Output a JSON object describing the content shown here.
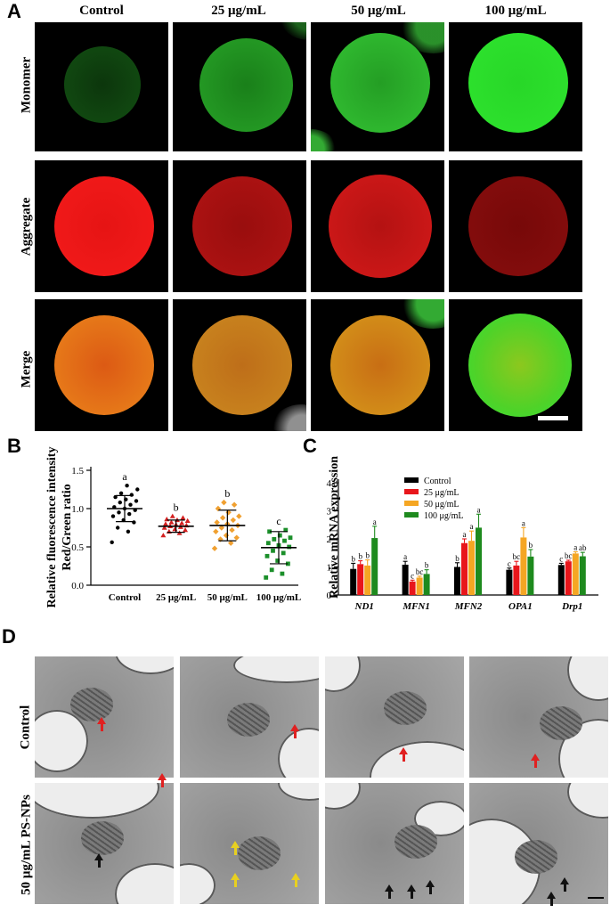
{
  "figure": {
    "panel_a": {
      "label": "A",
      "columns": [
        "Control",
        "25 μg/mL",
        "50 μg/mL",
        "100 μg/mL"
      ],
      "rows": [
        "Monomer",
        "Aggregate",
        "Merge"
      ]
    },
    "panel_b": {
      "label": "B",
      "ylabel_line1": "Relative fluorescence intensity",
      "ylabel_line2": "Red/Green ratio"
    },
    "panel_c": {
      "label": "C",
      "ylabel": "Relative mRNA expression"
    },
    "panel_d": {
      "label": "D",
      "rows": [
        "Control",
        "50 μg/mL PS-NPs"
      ]
    }
  },
  "colors": {
    "control": "#000000",
    "c25": "#e8161b",
    "c50": "#f5a623",
    "c100": "#1e8a1e",
    "b25": "#d42020",
    "b50": "#f0a030",
    "b100": "#1b8f2a",
    "green_fluor": "#22d622",
    "red_fluor": "#ff1a1a",
    "tem_bg": "#9a9a9a"
  },
  "chart_data": [
    {
      "type": "scatter",
      "categories": [
        "Control",
        "25 μg/mL",
        "50 μg/mL",
        "100 μg/mL"
      ],
      "ylim": [
        0.0,
        1.5
      ],
      "yticks": [
        "0.0",
        "0.5",
        "1.0",
        "1.5"
      ],
      "means": [
        1.0,
        0.77,
        0.78,
        0.49
      ],
      "sd": [
        0.17,
        0.08,
        0.2,
        0.21
      ],
      "letters": [
        "a",
        "b",
        "b",
        "c"
      ],
      "points": [
        [
          0.56,
          0.7,
          0.75,
          0.82,
          0.85,
          0.9,
          0.93,
          0.95,
          0.98,
          1.0,
          1.02,
          1.05,
          1.08,
          1.1,
          1.12,
          1.15,
          1.18,
          1.2,
          1.25,
          1.3
        ],
        [
          0.65,
          0.68,
          0.7,
          0.72,
          0.73,
          0.75,
          0.76,
          0.77,
          0.78,
          0.79,
          0.8,
          0.81,
          0.82,
          0.84,
          0.85,
          0.86,
          0.88,
          0.9
        ],
        [
          0.48,
          0.55,
          0.6,
          0.62,
          0.65,
          0.7,
          0.72,
          0.75,
          0.78,
          0.8,
          0.82,
          0.85,
          0.88,
          0.9,
          0.95,
          1.0,
          1.05,
          1.08
        ],
        [
          0.1,
          0.15,
          0.2,
          0.28,
          0.32,
          0.38,
          0.42,
          0.45,
          0.5,
          0.52,
          0.55,
          0.58,
          0.6,
          0.62,
          0.65,
          0.7,
          0.72
        ]
      ]
    },
    {
      "type": "bar",
      "categories": [
        "ND1",
        "MFN1",
        "MFN2",
        "OPA1",
        "Drp1"
      ],
      "ylim": [
        0,
        4
      ],
      "yticks": [
        "0",
        "1",
        "2",
        "3",
        "4"
      ],
      "series": [
        {
          "name": "Control",
          "values": [
            0.93,
            1.08,
            1.0,
            0.9,
            1.07
          ],
          "err": [
            0.2,
            0.12,
            0.15,
            0.06,
            0.06
          ],
          "letters": [
            "b",
            "a",
            "b",
            "c",
            "c"
          ]
        },
        {
          "name": "25 μg/mL",
          "values": [
            1.1,
            0.48,
            1.85,
            1.05,
            1.2
          ],
          "err": [
            0.12,
            0.05,
            0.15,
            0.15,
            0.04
          ],
          "letters": [
            "b",
            "c",
            "a",
            "bc",
            "bc"
          ]
        },
        {
          "name": "50 μg/mL",
          "values": [
            1.05,
            0.62,
            1.93,
            2.05,
            1.48
          ],
          "err": [
            0.2,
            0.05,
            0.35,
            0.35,
            0.06
          ],
          "letters": [
            "b",
            "bc",
            "a",
            "a",
            "a"
          ]
        },
        {
          "name": "100 μg/mL",
          "values": [
            2.03,
            0.75,
            2.4,
            1.37,
            1.38
          ],
          "err": [
            0.42,
            0.15,
            0.48,
            0.25,
            0.14
          ],
          "letters": [
            "a",
            "b",
            "a",
            "b",
            "ab"
          ]
        }
      ]
    }
  ]
}
